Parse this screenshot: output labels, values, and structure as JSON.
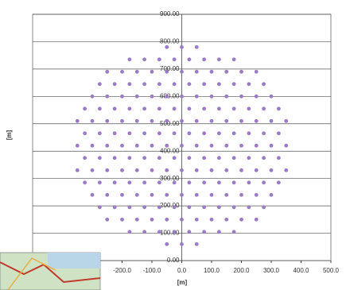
{
  "chart_data": {
    "type": "scatter",
    "x_label": "[m]",
    "y_label": "[m]",
    "xlim": [
      -500,
      500
    ],
    "ylim": [
      0,
      900
    ],
    "xticks": [
      {
        "value": -200,
        "label": "-200.0"
      },
      {
        "value": -100,
        "label": "-100.0"
      },
      {
        "value": 0,
        "label": "0.0"
      },
      {
        "value": 100,
        "label": "100.0"
      },
      {
        "value": 200,
        "label": "200.0"
      },
      {
        "value": 300,
        "label": "300.0"
      },
      {
        "value": 400,
        "label": "400.0"
      },
      {
        "value": 500,
        "label": "500.0"
      }
    ],
    "yticks": [
      {
        "value": 0,
        "label": "0.00"
      },
      {
        "value": 100,
        "label": "100.00"
      },
      {
        "value": 200,
        "label": "200.00"
      },
      {
        "value": 300,
        "label": "300.00"
      },
      {
        "value": 400,
        "label": "400.00"
      },
      {
        "value": 500,
        "label": "500.00"
      },
      {
        "value": 600,
        "label": "600.00"
      },
      {
        "value": 700,
        "label": "700.00"
      },
      {
        "value": 800,
        "label": "800.00"
      },
      {
        "value": 900,
        "label": "900.00"
      }
    ],
    "grid": true,
    "series": [
      {
        "color": "#9a7cc6",
        "x": [
          -50,
          0,
          50,
          -175,
          -125,
          -75,
          -25,
          25,
          75,
          125,
          175,
          -250,
          -200,
          -150,
          -100,
          -50,
          0,
          50,
          100,
          150,
          200,
          250,
          -275,
          -225,
          -175,
          -125,
          -75,
          -25,
          25,
          75,
          125,
          175,
          225,
          275,
          -300,
          -250,
          -200,
          -150,
          -100,
          -50,
          0,
          50,
          100,
          150,
          200,
          250,
          300,
          -325,
          -275,
          -225,
          -175,
          -125,
          -75,
          -25,
          25,
          75,
          125,
          175,
          225,
          275,
          325,
          -350,
          -300,
          -250,
          -200,
          -150,
          -100,
          -50,
          0,
          50,
          100,
          150,
          200,
          250,
          300,
          350,
          -325,
          -275,
          -225,
          -175,
          -125,
          -75,
          -25,
          25,
          75,
          125,
          175,
          225,
          275,
          325,
          -350,
          -300,
          -250,
          -200,
          -150,
          -100,
          -50,
          0,
          50,
          100,
          150,
          200,
          250,
          300,
          350,
          -325,
          -275,
          -225,
          -175,
          -125,
          -75,
          -25,
          25,
          75,
          125,
          175,
          225,
          275,
          325,
          -350,
          -300,
          -250,
          -200,
          -150,
          -100,
          -50,
          0,
          50,
          100,
          150,
          200,
          250,
          300,
          350,
          -325,
          -275,
          -225,
          -175,
          -125,
          -75,
          -25,
          25,
          75,
          125,
          175,
          225,
          275,
          325,
          -300,
          -250,
          -200,
          -150,
          -100,
          -50,
          0,
          50,
          100,
          150,
          200,
          250,
          300,
          -275,
          -225,
          -175,
          -125,
          -75,
          -25,
          25,
          75,
          125,
          175,
          225,
          275,
          -250,
          -200,
          -150,
          -100,
          -50,
          0,
          50,
          100,
          150,
          200,
          250,
          -175,
          -125,
          -75,
          -25,
          25,
          75,
          125,
          175,
          -50,
          0,
          50
        ],
        "y": [
          60,
          60,
          60,
          105,
          105,
          105,
          105,
          105,
          105,
          105,
          105,
          150,
          150,
          150,
          150,
          150,
          150,
          150,
          150,
          150,
          150,
          150,
          195,
          195,
          195,
          195,
          195,
          195,
          195,
          195,
          195,
          195,
          195,
          195,
          240,
          240,
          240,
          240,
          240,
          240,
          240,
          240,
          240,
          240,
          240,
          240,
          240,
          285,
          285,
          285,
          285,
          285,
          285,
          285,
          285,
          285,
          285,
          285,
          285,
          285,
          285,
          330,
          330,
          330,
          330,
          330,
          330,
          330,
          330,
          330,
          330,
          330,
          330,
          330,
          330,
          330,
          375,
          375,
          375,
          375,
          375,
          375,
          375,
          375,
          375,
          375,
          375,
          375,
          375,
          375,
          420,
          420,
          420,
          420,
          420,
          420,
          420,
          420,
          420,
          420,
          420,
          420,
          420,
          420,
          420,
          465,
          465,
          465,
          465,
          465,
          465,
          465,
          465,
          465,
          465,
          465,
          465,
          465,
          465,
          510,
          510,
          510,
          510,
          510,
          510,
          510,
          510,
          510,
          510,
          510,
          510,
          510,
          510,
          510,
          555,
          555,
          555,
          555,
          555,
          555,
          555,
          555,
          555,
          555,
          555,
          555,
          555,
          555,
          600,
          600,
          600,
          600,
          600,
          600,
          600,
          600,
          600,
          600,
          600,
          600,
          600,
          645,
          645,
          645,
          645,
          645,
          645,
          645,
          645,
          645,
          645,
          645,
          645,
          690,
          690,
          690,
          690,
          690,
          690,
          690,
          690,
          690,
          690,
          690,
          735,
          735,
          735,
          735,
          735,
          735,
          735,
          735,
          780,
          780,
          780
        ]
      }
    ]
  }
}
